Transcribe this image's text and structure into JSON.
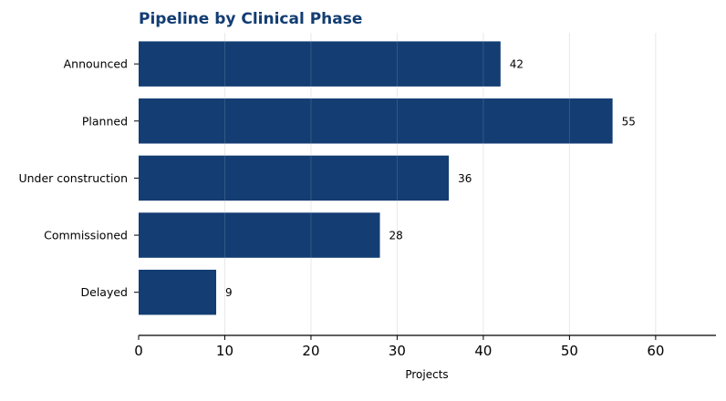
{
  "chart_data": {
    "type": "bar",
    "orientation": "horizontal",
    "title": "Pipeline by Clinical Phase",
    "categories": [
      "Announced",
      "Planned",
      "Under construction",
      "Commissioned",
      "Delayed"
    ],
    "values": [
      42,
      55,
      36,
      28,
      9
    ],
    "xlabel": "Projects",
    "ylabel": "",
    "xlim": [
      0,
      67
    ],
    "xticks": [
      0,
      10,
      20,
      30,
      40,
      50,
      60
    ],
    "grid": "vertical",
    "legend": "none",
    "bar_color": "#133d73",
    "title_color": "#133d73"
  }
}
